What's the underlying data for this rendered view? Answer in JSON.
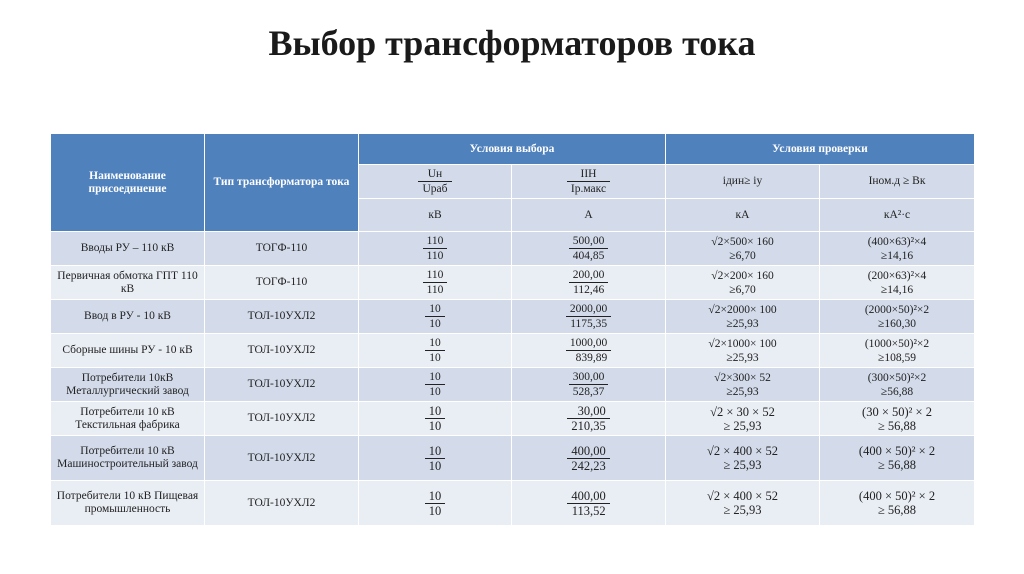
{
  "title": "Выбор трансформаторов тока",
  "header": {
    "name_col": "Наименование присоединение",
    "type_col": "Тип трансформатора тока",
    "selection_group": "Условия выбора",
    "check_group": "Условия проверки",
    "sel1_num": "Uн",
    "sel1_den": "Uраб",
    "sel2_num": "IIH",
    "sel2_den": "Iр.макс",
    "chk1": "iдин≥ iу",
    "chk2": "Iном.д ≥ Вк",
    "unit1": "кВ",
    "unit2": "А",
    "unit3": "кА",
    "unit4": "кА²·с"
  },
  "rows": [
    {
      "name": "Вводы РУ – 110 кВ",
      "type": "ТОГФ-110",
      "u_num": "110",
      "u_den": "110",
      "i_num": "500,00",
      "i_den": "404,85",
      "din_1": "√2×500× 160",
      "din_2": "≥6,70",
      "term_1": "(400×63)²×4",
      "term_2": "≥14,16"
    },
    {
      "name": "Первичная обмотка ГПТ 110 кВ",
      "type": "ТОГФ-110",
      "u_num": "110",
      "u_den": "110",
      "i_num": "200,00",
      "i_den": "112,46",
      "din_1": "√2×200× 160",
      "din_2": "≥6,70",
      "term_1": "(200×63)²×4",
      "term_2": "≥14,16"
    },
    {
      "name": "Ввод в РУ - 10 кВ",
      "type": "ТОЛ-10УХЛ2",
      "u_num": "10",
      "u_den": "10",
      "i_num": "2000,00",
      "i_den": "1175,35",
      "din_1": "√2×2000× 100",
      "din_2": "≥25,93",
      "term_1": "(2000×50)²×2",
      "term_2": "≥160,30"
    },
    {
      "name": "Сборные шины РУ - 10 кВ",
      "type": "ТОЛ-10УХЛ2",
      "u_num": "10",
      "u_den": "10",
      "i_num": "1000,00",
      "i_den": "839,89",
      "din_1": "√2×1000× 100",
      "din_2": "≥25,93",
      "term_1": "(1000×50)²×2",
      "term_2": "≥108,59"
    },
    {
      "name": "Потребители 10кВ Металлургический завод",
      "type": "ТОЛ-10УХЛ2",
      "u_num": "10",
      "u_den": "10",
      "i_num": "300,00",
      "i_den": "528,37",
      "din_1": "√2×300× 52",
      "din_2": "≥25,93",
      "term_1": "(300×50)²×2",
      "term_2": "≥56,88"
    },
    {
      "name": "Потребители 10 кВ Текстильная фабрика",
      "type": "ТОЛ-10УХЛ2",
      "u_num": "10",
      "u_den": "10",
      "i_num": "30,00",
      "i_den": "210,35",
      "din_1": "√2 × 30 × 52",
      "din_2": "≥ 25,93",
      "term_1": "(30 × 50)² × 2",
      "term_2": "≥ 56,88"
    },
    {
      "name": "Потребители 10 кВ Машиностроительный завод",
      "type": "ТОЛ-10УХЛ2",
      "u_num": "10",
      "u_den": "10",
      "i_num": "400,00",
      "i_den": "242,23",
      "din_1": "√2 × 400 × 52",
      "din_2": "≥ 25,93",
      "term_1": "(400 × 50)² × 2",
      "term_2": "≥ 56,88"
    },
    {
      "name": "Потребители 10 кВ Пищевая промышленность",
      "type": "ТОЛ-10УХЛ2",
      "u_num": "10",
      "u_den": "10",
      "i_num": "400,00",
      "i_den": "113,52",
      "din_1": "√2 × 400 × 52",
      "din_2": "≥ 25,93",
      "term_1": "(400 × 50)² × 2",
      "term_2": "≥ 56,88"
    }
  ]
}
